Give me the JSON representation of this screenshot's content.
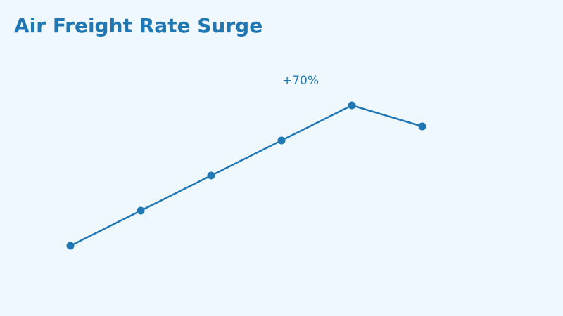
{
  "chart_data": {
    "type": "line",
    "title": "Air Freight Rate Surge",
    "xlabel": "",
    "ylabel": "",
    "grid": false,
    "legend": "none",
    "x": [
      0,
      1,
      2,
      3,
      4,
      5
    ],
    "series": [
      {
        "values": [
          0,
          1,
          2,
          3,
          4,
          3.4
        ]
      }
    ],
    "ylim": [
      -1,
      6
    ],
    "annotations": [
      {
        "text": "+70%",
        "x": 3.27,
        "y": 4.6
      }
    ]
  },
  "colors": {
    "background": "#f0f8ff",
    "accent": "#1f77b4"
  }
}
